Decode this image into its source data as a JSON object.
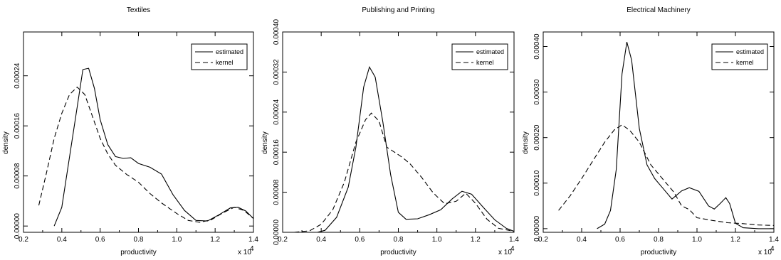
{
  "chart_data": [
    {
      "type": "line",
      "title": "Textiles",
      "xlabel": "productivity",
      "ylabel": "density",
      "x_multiplier": "x 10",
      "x_multiplier_exp": "4",
      "xlim": [
        0.2,
        1.4
      ],
      "ylim": [
        -1e-05,
        0.00031
      ],
      "x_ticks": [
        "0.2",
        "0.4",
        "0.6",
        "0.8",
        "1.0",
        "1.2",
        "1.4"
      ],
      "y_ticks": [
        "0.00000",
        "0.00008",
        "0.00016",
        "0.00024"
      ],
      "y_tick_values": [
        0,
        8e-05,
        0.00016,
        0.00024
      ],
      "legend_position": "top-right",
      "grid": false,
      "series": [
        {
          "name": "estimated",
          "style": "solid",
          "points": [
            [
              0.36,
              0
            ],
            [
              0.4,
              3e-05
            ],
            [
              0.44,
              0.00011
            ],
            [
              0.48,
              0.00019
            ],
            [
              0.51,
              0.00025
            ],
            [
              0.54,
              0.000252
            ],
            [
              0.57,
              0.00022
            ],
            [
              0.6,
              0.00017
            ],
            [
              0.64,
              0.00013
            ],
            [
              0.68,
              0.000111
            ],
            [
              0.72,
              0.000108
            ],
            [
              0.76,
              0.000109
            ],
            [
              0.8,
              0.0001
            ],
            [
              0.86,
              9.4e-05
            ],
            [
              0.92,
              8.3e-05
            ],
            [
              0.98,
              5e-05
            ],
            [
              1.04,
              2.5e-05
            ],
            [
              1.1,
              9e-06
            ],
            [
              1.16,
              8e-06
            ],
            [
              1.22,
              1.8e-05
            ],
            [
              1.28,
              2.9e-05
            ],
            [
              1.32,
              3e-05
            ],
            [
              1.36,
              2.4e-05
            ],
            [
              1.4,
              1.2e-05
            ]
          ]
        },
        {
          "name": "kernel",
          "style": "dashed",
          "points": [
            [
              0.28,
              3.3e-05
            ],
            [
              0.32,
              8.5e-05
            ],
            [
              0.36,
              0.00014
            ],
            [
              0.4,
              0.00018
            ],
            [
              0.44,
              0.00021
            ],
            [
              0.48,
              0.000222
            ],
            [
              0.52,
              0.00021
            ],
            [
              0.56,
              0.000175
            ],
            [
              0.6,
              0.00014
            ],
            [
              0.64,
              0.000115
            ],
            [
              0.68,
              9.7e-05
            ],
            [
              0.74,
              8.2e-05
            ],
            [
              0.8,
              7e-05
            ],
            [
              0.86,
              5.2e-05
            ],
            [
              0.92,
              3.7e-05
            ],
            [
              1.0,
              2e-05
            ],
            [
              1.06,
              9e-06
            ],
            [
              1.12,
              6e-06
            ],
            [
              1.18,
              1e-05
            ],
            [
              1.24,
              2.1e-05
            ],
            [
              1.3,
              3e-05
            ],
            [
              1.35,
              2.5e-05
            ],
            [
              1.4,
              1.2e-05
            ]
          ]
        }
      ]
    },
    {
      "type": "line",
      "title": "Publishing and Printing",
      "xlabel": "productivity",
      "ylabel": "density",
      "x_multiplier": "x 10",
      "x_multiplier_exp": "4",
      "xlim": [
        0.2,
        1.4
      ],
      "ylim": [
        0.0,
        0.0004
      ],
      "x_ticks": [
        "0.2",
        "0.4",
        "0.6",
        "0.8",
        "1.0",
        "1.2",
        "1.4"
      ],
      "y_ticks": [
        "0.00000",
        "0.00008",
        "0.00016",
        "0.00024",
        "0.00032",
        "0.00040"
      ],
      "y_tick_values": [
        0,
        8e-05,
        0.00016,
        0.00024,
        0.00032,
        0.0004
      ],
      "legend_position": "top-right",
      "grid": false,
      "series": [
        {
          "name": "estimated",
          "style": "solid",
          "points": [
            [
              0.38,
              0
            ],
            [
              0.42,
              4e-06
            ],
            [
              0.48,
              3e-05
            ],
            [
              0.54,
              9e-05
            ],
            [
              0.58,
              0.00017
            ],
            [
              0.62,
              0.00029
            ],
            [
              0.65,
              0.00033
            ],
            [
              0.68,
              0.00031
            ],
            [
              0.72,
              0.00022
            ],
            [
              0.76,
              0.000115
            ],
            [
              0.8,
              4e-05
            ],
            [
              0.84,
              2.6e-05
            ],
            [
              0.9,
              2.7e-05
            ],
            [
              0.96,
              3.5e-05
            ],
            [
              1.02,
              4.5e-05
            ],
            [
              1.08,
              6.7e-05
            ],
            [
              1.13,
              8.2e-05
            ],
            [
              1.18,
              7.6e-05
            ],
            [
              1.24,
              5e-05
            ],
            [
              1.3,
              2.5e-05
            ],
            [
              1.36,
              8e-06
            ],
            [
              1.4,
              2e-06
            ]
          ]
        },
        {
          "name": "kernel",
          "style": "dashed",
          "points": [
            [
              0.26,
              0
            ],
            [
              0.34,
              3e-06
            ],
            [
              0.4,
              1.6e-05
            ],
            [
              0.46,
              4.5e-05
            ],
            [
              0.52,
              0.0001
            ],
            [
              0.58,
              0.00018
            ],
            [
              0.63,
              0.000225
            ],
            [
              0.66,
              0.000238
            ],
            [
              0.7,
              0.000222
            ],
            [
              0.74,
              0.00017
            ],
            [
              0.78,
              0.00016
            ],
            [
              0.82,
              0.00015
            ],
            [
              0.86,
              0.000137
            ],
            [
              0.92,
              0.00011
            ],
            [
              0.98,
              7.9e-05
            ],
            [
              1.04,
              5.7e-05
            ],
            [
              1.1,
              6.2e-05
            ],
            [
              1.15,
              7.8e-05
            ],
            [
              1.2,
              5.8e-05
            ],
            [
              1.26,
              2.6e-05
            ],
            [
              1.32,
              8e-06
            ],
            [
              1.4,
              2e-06
            ]
          ]
        }
      ]
    },
    {
      "type": "line",
      "title": "Electrical Machinery",
      "xlabel": "productivity",
      "ylabel": "density",
      "x_multiplier": "x 10",
      "x_multiplier_exp": "4",
      "xlim": [
        0.2,
        1.4
      ],
      "ylim": [
        -8e-06,
        0.000432
      ],
      "x_ticks": [
        "0.2",
        "0.4",
        "0.6",
        "0.8",
        "1.0",
        "1.2",
        "1.4"
      ],
      "y_ticks": [
        "0.00000",
        "0.00010",
        "0.00020",
        "0.00030",
        "0.00040"
      ],
      "y_tick_values": [
        0,
        0.0001,
        0.0002,
        0.0003,
        0.0004
      ],
      "legend_position": "top-right",
      "grid": false,
      "series": [
        {
          "name": "estimated",
          "style": "solid",
          "points": [
            [
              0.48,
              0
            ],
            [
              0.52,
              1e-05
            ],
            [
              0.55,
              4e-05
            ],
            [
              0.58,
              0.00013
            ],
            [
              0.61,
              0.00034
            ],
            [
              0.635,
              0.00041
            ],
            [
              0.66,
              0.00037
            ],
            [
              0.7,
              0.00022
            ],
            [
              0.74,
              0.00014
            ],
            [
              0.78,
              0.00011
            ],
            [
              0.82,
              9e-05
            ],
            [
              0.87,
              6.5e-05
            ],
            [
              0.92,
              8.3e-05
            ],
            [
              0.96,
              9e-05
            ],
            [
              1.01,
              8.2e-05
            ],
            [
              1.06,
              5e-05
            ],
            [
              1.09,
              4.3e-05
            ],
            [
              1.12,
              5.5e-05
            ],
            [
              1.15,
              6.8e-05
            ],
            [
              1.17,
              5.5e-05
            ],
            [
              1.2,
              1.2e-05
            ],
            [
              1.24,
              2e-06
            ],
            [
              1.32,
              0
            ],
            [
              1.4,
              0
            ]
          ]
        },
        {
          "name": "kernel",
          "style": "dashed",
          "points": [
            [
              0.28,
              4e-05
            ],
            [
              0.34,
              7.2e-05
            ],
            [
              0.4,
              0.00011
            ],
            [
              0.46,
              0.00015
            ],
            [
              0.52,
              0.00019
            ],
            [
              0.57,
              0.000217
            ],
            [
              0.61,
              0.000228
            ],
            [
              0.65,
              0.000216
            ],
            [
              0.7,
              0.00019
            ],
            [
              0.76,
              0.00014
            ],
            [
              0.82,
              0.00011
            ],
            [
              0.88,
              8e-05
            ],
            [
              0.92,
              5e-05
            ],
            [
              0.96,
              4.2e-05
            ],
            [
              1.0,
              2.4e-05
            ],
            [
              1.08,
              1.8e-05
            ],
            [
              1.16,
              1.3e-05
            ],
            [
              1.24,
              1.1e-05
            ],
            [
              1.32,
              8e-06
            ],
            [
              1.4,
              7e-06
            ]
          ]
        }
      ]
    }
  ]
}
